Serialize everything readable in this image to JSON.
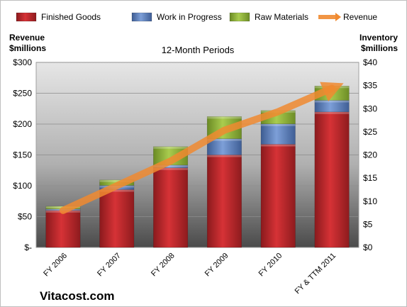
{
  "chart_data": {
    "type": "bar",
    "title": "12-Month Periods",
    "left_axis_label": [
      "Revenue",
      "$millions"
    ],
    "right_axis_label": [
      "Inventory",
      "$millions"
    ],
    "categories": [
      "FY 2006",
      "FY 2007",
      "FY 2008",
      "FY 2009",
      "FY 2010",
      "FY & TTM 2011"
    ],
    "left_ticks": [
      "$-",
      "$50",
      "$100",
      "$150",
      "$200",
      "$250",
      "$300"
    ],
    "right_ticks": [
      "$0",
      "$5",
      "$10",
      "$15",
      "$20",
      "$25",
      "$30",
      "$35",
      "$40"
    ],
    "left_ylim": [
      0,
      300
    ],
    "right_ylim": [
      0,
      40
    ],
    "series": [
      {
        "name": "Finished Goods",
        "axis": "right",
        "kind": "stacked-bar",
        "color": "#c0282b",
        "values": [
          8.0,
          12.5,
          17.2,
          20.0,
          22.3,
          29.3
        ]
      },
      {
        "name": "Work in Progress",
        "axis": "right",
        "kind": "stacked-bar",
        "color": "#5b7fbf",
        "values": [
          0.3,
          0.9,
          0.6,
          3.5,
          4.4,
          2.5
        ]
      },
      {
        "name": "Raw Materials",
        "axis": "right",
        "kind": "stacked-bar",
        "color": "#93b53a",
        "values": [
          0.6,
          1.2,
          4.0,
          4.8,
          2.9,
          3.1
        ]
      },
      {
        "name": "Revenue",
        "axis": "left",
        "kind": "line",
        "color": "#f08a30",
        "values": [
          60,
          100,
          140,
          190,
          220,
          258
        ]
      }
    ],
    "legend_position": "top",
    "grid": true
  },
  "watermark": "Vitacost.com"
}
